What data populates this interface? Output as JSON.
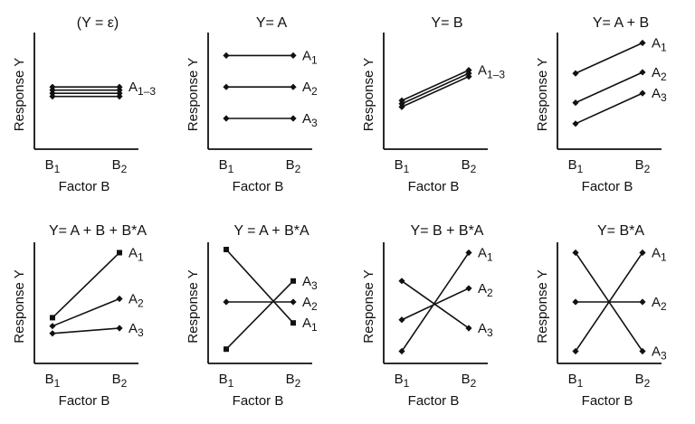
{
  "chart_data": [
    {
      "type": "line",
      "title": "(Y = ε)",
      "ylabel": "Response Y",
      "xlabel": "Factor B",
      "categories": [
        "B1",
        "B2"
      ],
      "ylim": [
        0,
        100
      ],
      "grid": false,
      "series": [
        {
          "name": "A1-3",
          "values": [
            55,
            55
          ],
          "marker": "diamond"
        },
        {
          "name": "",
          "values": [
            52,
            52
          ],
          "marker": "diamond"
        },
        {
          "name": "",
          "values": [
            49,
            49
          ],
          "marker": "diamond"
        },
        {
          "name": "",
          "values": [
            46,
            46
          ],
          "marker": "diamond"
        }
      ]
    },
    {
      "type": "line",
      "title": "Y= A",
      "ylabel": "Response Y",
      "xlabel": "Factor B",
      "categories": [
        "B1",
        "B2"
      ],
      "ylim": [
        0,
        100
      ],
      "grid": false,
      "series": [
        {
          "name": "A1",
          "values": [
            85,
            85
          ],
          "marker": "diamond"
        },
        {
          "name": "A2",
          "values": [
            55,
            55
          ],
          "marker": "diamond"
        },
        {
          "name": "A3",
          "values": [
            25,
            25
          ],
          "marker": "diamond"
        }
      ]
    },
    {
      "type": "line",
      "title": "Y= B",
      "ylabel": "Response Y",
      "xlabel": "Factor B",
      "categories": [
        "B1",
        "B2"
      ],
      "ylim": [
        0,
        100
      ],
      "grid": false,
      "series": [
        {
          "name": "A1-3",
          "values": [
            42,
            71
          ],
          "marker": "diamond"
        },
        {
          "name": "",
          "values": [
            39,
            68
          ],
          "marker": "diamond"
        },
        {
          "name": "",
          "values": [
            36,
            65
          ],
          "marker": "diamond"
        }
      ]
    },
    {
      "type": "line",
      "title": "Y= A + B",
      "ylabel": "Response Y",
      "xlabel": "Factor B",
      "categories": [
        "B1",
        "B2"
      ],
      "ylim": [
        0,
        100
      ],
      "grid": false,
      "series": [
        {
          "name": "A1",
          "values": [
            68,
            97
          ],
          "marker": "diamond"
        },
        {
          "name": "A2",
          "values": [
            40,
            69
          ],
          "marker": "diamond"
        },
        {
          "name": "A3",
          "values": [
            20,
            49
          ],
          "marker": "diamond"
        }
      ]
    },
    {
      "type": "line",
      "title": "Y= A + B + B*A",
      "ylabel": "Response Y",
      "xlabel": "Factor B",
      "categories": [
        "B1",
        "B2"
      ],
      "ylim": [
        0,
        100
      ],
      "grid": false,
      "series": [
        {
          "name": "A1",
          "values": [
            35,
            97
          ],
          "marker": "square"
        },
        {
          "name": "A2",
          "values": [
            27,
            53
          ],
          "marker": "diamond"
        },
        {
          "name": "A3",
          "values": [
            20,
            25
          ],
          "marker": "diamond"
        }
      ]
    },
    {
      "type": "line",
      "title": "Y = A + B*A",
      "ylabel": "Response Y",
      "xlabel": "Factor B",
      "categories": [
        "B1",
        "B2"
      ],
      "ylim": [
        0,
        100
      ],
      "grid": false,
      "series": [
        {
          "name": "A1",
          "values": [
            100,
            30
          ],
          "marker": "square"
        },
        {
          "name": "A2",
          "values": [
            50,
            50
          ],
          "marker": "diamond"
        },
        {
          "name": "A3",
          "values": [
            5,
            70
          ],
          "marker": "square"
        }
      ]
    },
    {
      "type": "line",
      "title": "Y= B + B*A",
      "ylabel": "Response Y",
      "xlabel": "Factor B",
      "categories": [
        "B1",
        "B2"
      ],
      "ylim": [
        0,
        100
      ],
      "grid": false,
      "series": [
        {
          "name": "A1",
          "values": [
            3,
            97
          ],
          "marker": "diamond"
        },
        {
          "name": "A2",
          "values": [
            33,
            63
          ],
          "marker": "diamond"
        },
        {
          "name": "A3",
          "values": [
            70,
            25
          ],
          "marker": "diamond"
        }
      ]
    },
    {
      "type": "line",
      "title": "Y= B*A",
      "ylabel": "Response Y",
      "xlabel": "Factor B",
      "categories": [
        "B1",
        "B2"
      ],
      "ylim": [
        0,
        100
      ],
      "grid": false,
      "series": [
        {
          "name": "A1",
          "values": [
            3,
            97
          ],
          "marker": "diamond"
        },
        {
          "name": "A2",
          "values": [
            50,
            50
          ],
          "marker": "diamond"
        },
        {
          "name": "A3",
          "values": [
            97,
            3
          ],
          "marker": "diamond"
        }
      ]
    }
  ]
}
